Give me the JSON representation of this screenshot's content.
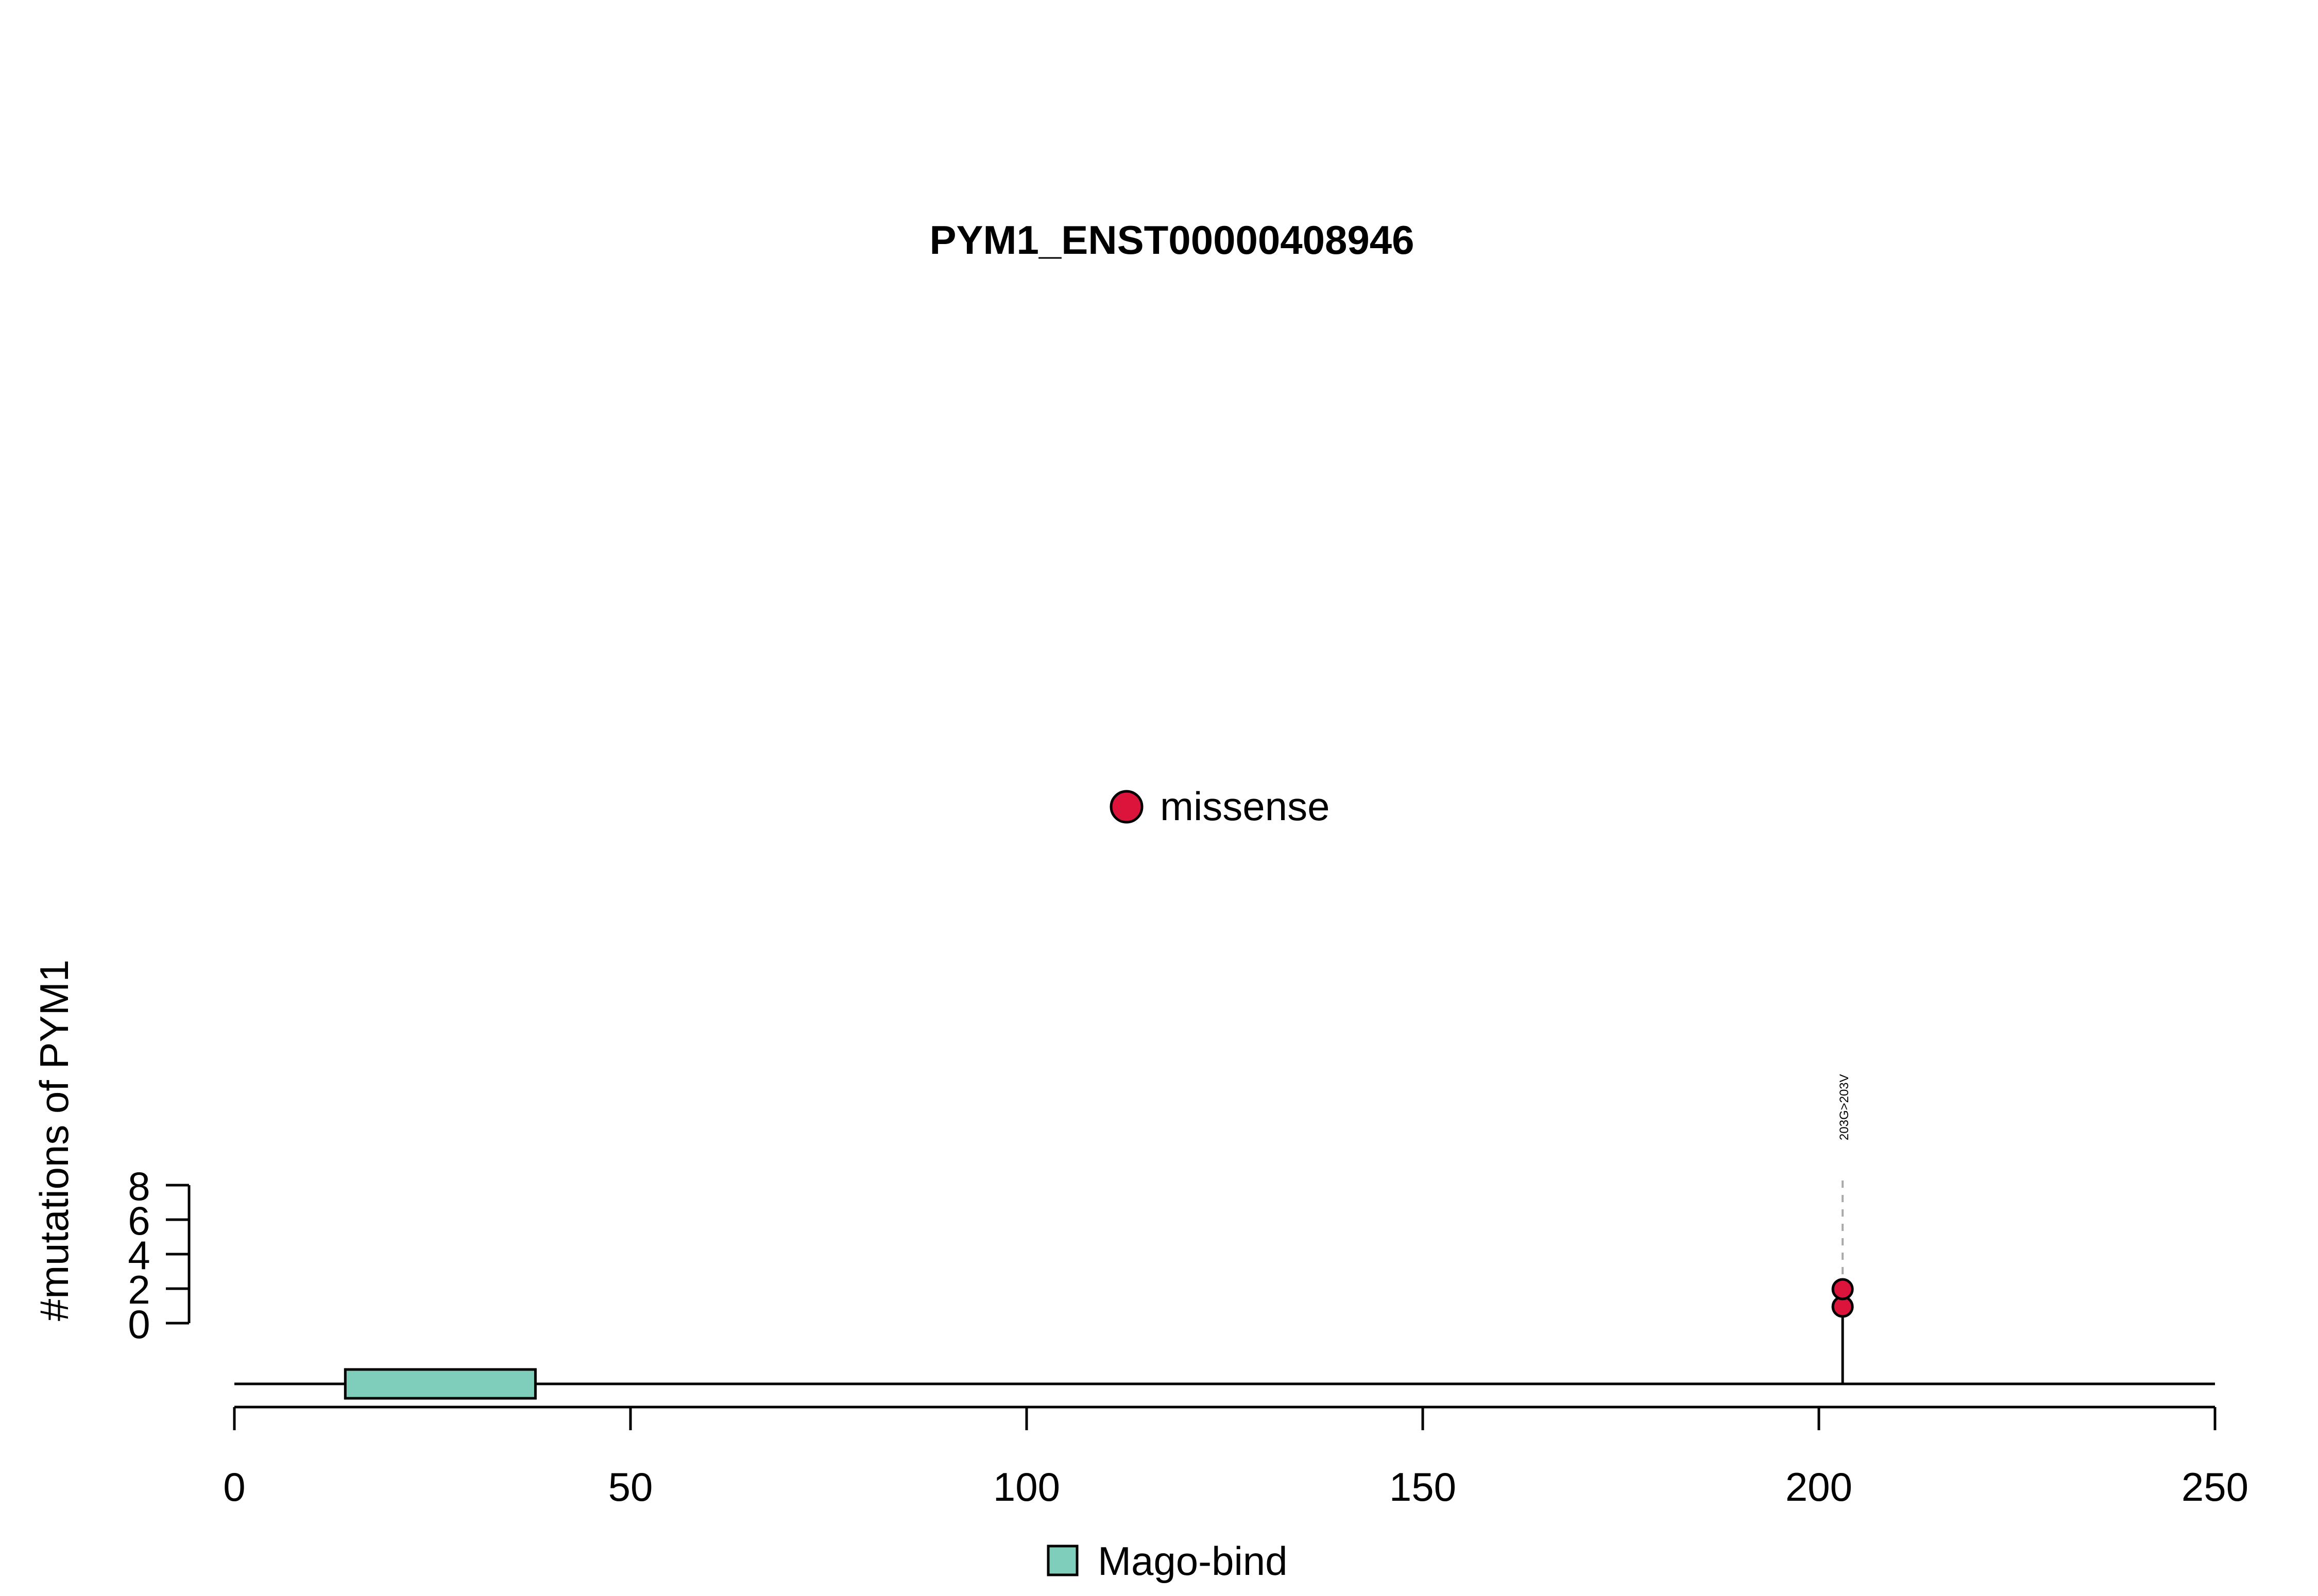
{
  "chart_data": {
    "type": "lollipop",
    "title": "PYM1_ENST00000408946",
    "ylabel": "#mutations of PYM1",
    "xlim": [
      0,
      250
    ],
    "ylim": [
      0,
      8
    ],
    "x_ticks": [
      0,
      50,
      100,
      150,
      200,
      250
    ],
    "y_ticks": [
      0,
      2,
      4,
      6,
      8
    ],
    "mutation_legend": [
      {
        "label": "missense",
        "color": "#DC143C"
      }
    ],
    "mutations": [
      {
        "position": 203,
        "count": 2,
        "type": "missense",
        "label": "203G>203V"
      }
    ],
    "domains": [
      {
        "name": "Mago-bind",
        "start": 14,
        "end": 38,
        "color": "#7FCDBB"
      }
    ],
    "domain_legend": [
      {
        "label": "Mago-bind",
        "color": "#7FCDBB"
      }
    ]
  }
}
